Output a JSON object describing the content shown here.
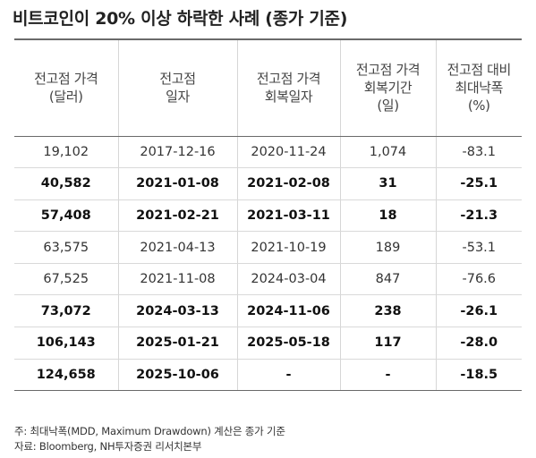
{
  "title": "비트코인이 20% 이상 하락한 사례 (종가 기준)",
  "table": {
    "headers": [
      [
        "전고점 가격",
        "(달러)"
      ],
      [
        "전고점",
        "일자"
      ],
      [
        "전고점 가격",
        "회복일자"
      ],
      [
        "전고점 가격",
        "회복기간",
        "(일)"
      ],
      [
        "전고점 대비",
        "최대낙폭",
        "(%)"
      ]
    ],
    "rows": [
      {
        "bold": false,
        "cells": [
          "19,102",
          "2017-12-16",
          "2020-11-24",
          "1,074",
          "-83.1"
        ]
      },
      {
        "bold": true,
        "cells": [
          "40,582",
          "2021-01-08",
          "2021-02-08",
          "31",
          "-25.1"
        ]
      },
      {
        "bold": true,
        "cells": [
          "57,408",
          "2021-02-21",
          "2021-03-11",
          "18",
          "-21.3"
        ]
      },
      {
        "bold": false,
        "cells": [
          "63,575",
          "2021-04-13",
          "2021-10-19",
          "189",
          "-53.1"
        ]
      },
      {
        "bold": false,
        "cells": [
          "67,525",
          "2021-11-08",
          "2024-03-04",
          "847",
          "-76.6"
        ]
      },
      {
        "bold": true,
        "cells": [
          "73,072",
          "2024-03-13",
          "2024-11-06",
          "238",
          "-26.1"
        ]
      },
      {
        "bold": true,
        "cells": [
          "106,143",
          "2025-01-21",
          "2025-05-18",
          "117",
          "-28.0"
        ]
      },
      {
        "bold": true,
        "cells": [
          "124,658",
          "2025-10-06",
          "-",
          "-",
          "-18.5"
        ]
      }
    ]
  },
  "footnotes": {
    "note": "주: 최대낙폭(MDD, Maximum Drawdown) 계산은 종가 기준",
    "source": "자료: Bloomberg, NH투자증권 리서치본부"
  }
}
